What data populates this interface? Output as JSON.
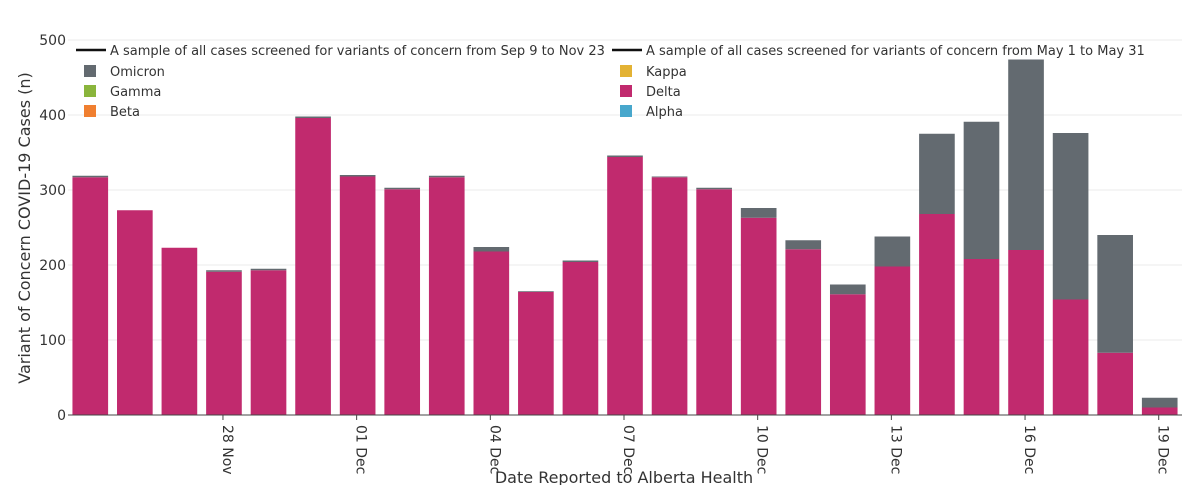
{
  "chart_data": {
    "type": "bar",
    "stacked": true,
    "xlabel": "Date Reported to Alberta Health",
    "ylabel": "Variant of Concern COVID-19 Cases (n)",
    "ylim": [
      0,
      500
    ],
    "yticks": [
      "0",
      "100",
      "200",
      "300",
      "400",
      "500"
    ],
    "grid": true,
    "x_tick_labels": [
      {
        "label": "28 Nov",
        "index": 3
      },
      {
        "label": "01 Dec",
        "index": 6
      },
      {
        "label": "04 Dec",
        "index": 9
      },
      {
        "label": "07 Dec",
        "index": 12
      },
      {
        "label": "10 Dec",
        "index": 15
      },
      {
        "label": "13 Dec",
        "index": 18
      },
      {
        "label": "16 Dec",
        "index": 21
      },
      {
        "label": "19 Dec",
        "index": 24
      }
    ],
    "legend_groups": [
      {
        "title": "A sample of all cases screened for variants of concern from Sep 9 to Nov 23",
        "items": [
          "Omicron",
          "Gamma",
          "Beta"
        ]
      },
      {
        "title": "A sample of all cases screened for variants of concern from May 1 to May 31",
        "items": [
          "Kappa",
          "Delta",
          "Alpha"
        ]
      }
    ],
    "colors": {
      "Omicron": "#636a70",
      "Gamma": "#8ab53c",
      "Beta": "#f07f30",
      "Kappa": "#e3b234",
      "Delta": "#c12a6e",
      "Alpha": "#48a7cc"
    },
    "series": [
      {
        "name": "Delta",
        "values": [
          317,
          273,
          223,
          191,
          193,
          396,
          318,
          301,
          317,
          218,
          164,
          204,
          344,
          317,
          301,
          263,
          221,
          161,
          198,
          268,
          208,
          220,
          154,
          83,
          10
        ]
      },
      {
        "name": "Omicron",
        "values": [
          2,
          0,
          0,
          2,
          2,
          2,
          2,
          2,
          2,
          6,
          1,
          2,
          2,
          1,
          2,
          13,
          12,
          13,
          40,
          107,
          183,
          254,
          222,
          157,
          13
        ]
      }
    ]
  }
}
